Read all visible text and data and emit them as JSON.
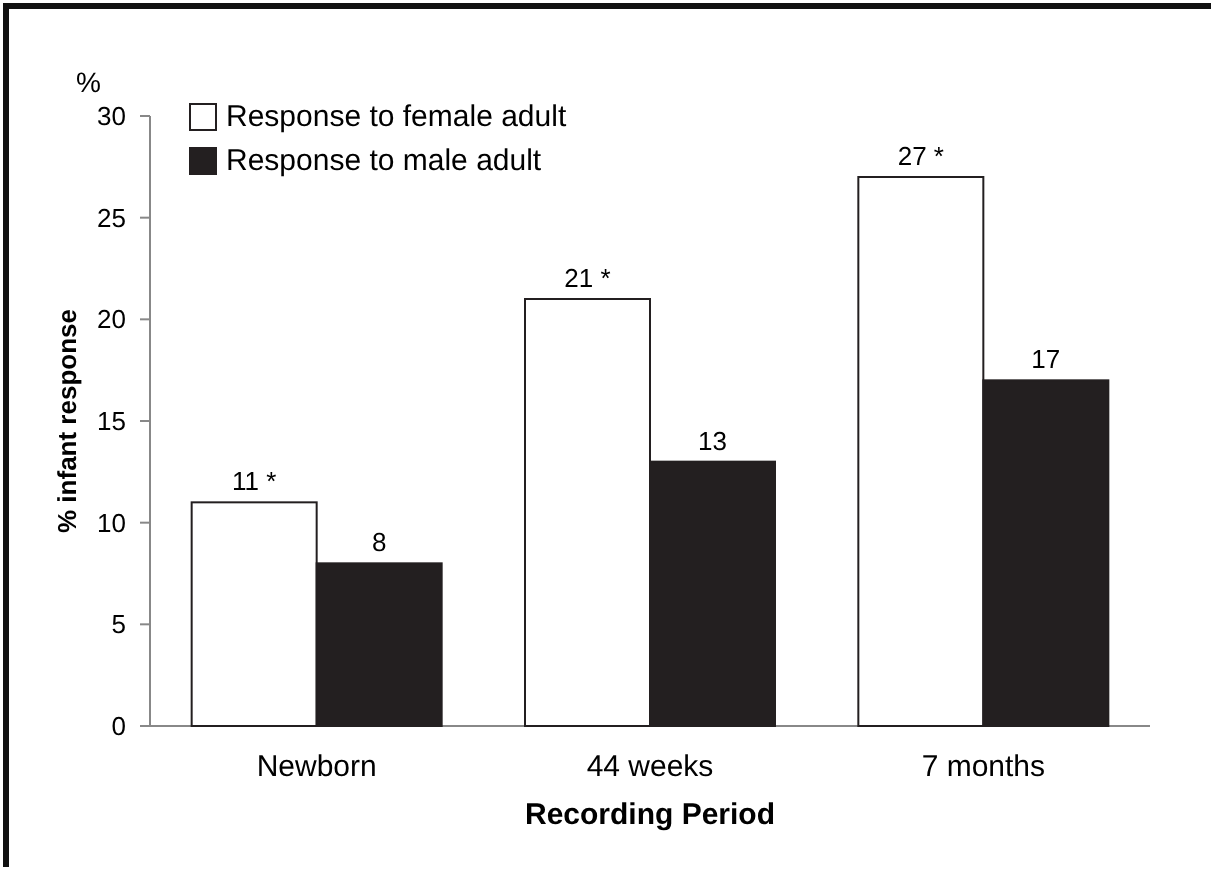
{
  "chart_data": {
    "type": "bar",
    "xlabel": "Recording Period",
    "ylabel": "% infant response",
    "annotations": [
      "%"
    ],
    "categories": [
      "Newborn",
      "44 weeks",
      "7 months"
    ],
    "series": [
      {
        "name": "Response to female adult",
        "color": "#ffffff",
        "values": [
          11,
          21,
          27
        ],
        "value_labels": [
          "11 *",
          "21 *",
          "27 *"
        ]
      },
      {
        "name": "Response to male adult",
        "color": "#231f20",
        "values": [
          8,
          13,
          17
        ],
        "value_labels": [
          "8",
          "13",
          "17"
        ]
      }
    ],
    "ylim": [
      0,
      30
    ],
    "yticks": [
      0,
      5,
      10,
      15,
      20,
      25,
      30
    ],
    "grid": false,
    "legend": "top left"
  }
}
